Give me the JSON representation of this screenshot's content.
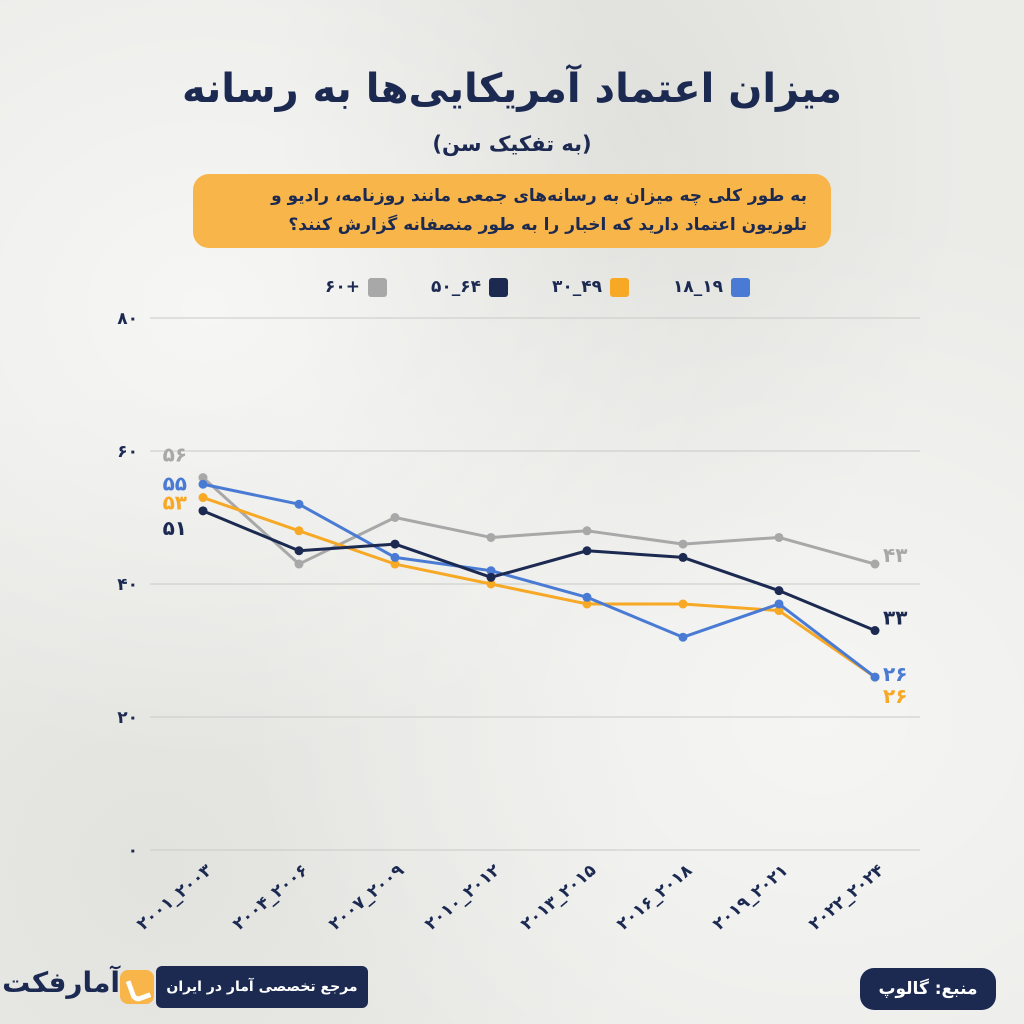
{
  "header": {
    "title": "میزان اعتماد آمریکایی‌ها به رسانه",
    "subtitle": "(به تفکیک سن)",
    "question": "به طور کلی چه میزان به رسانه‌های جمعی مانند روزنامه، رادیو و تلوزیون اعتماد دارید که اخبار را به طور منصفانه گزارش کنند؟"
  },
  "chart_data": {
    "type": "line",
    "categories": [
      "۲۰۰۱_۲۰۰۳",
      "۲۰۰۴_۲۰۰۶",
      "۲۰۰۷_۲۰۰۹",
      "۲۰۱۰_۲۰۱۲",
      "۲۰۱۳_۲۰۱۵",
      "۲۰۱۶_۲۰۱۸",
      "۲۰۱۹_۲۰۲۱",
      "۲۰۲۲_۲۰۲۴"
    ],
    "ylim": [
      0,
      80
    ],
    "yticks": [
      0,
      20,
      40,
      60,
      80
    ],
    "ytick_labels": [
      "۰",
      "۲۰",
      "۴۰",
      "۶۰",
      "۸۰"
    ],
    "grid": true,
    "legend_position": "top",
    "series": [
      {
        "name": "۱۸_۱۹",
        "color": "#4a7bd4",
        "values": [
          55,
          52,
          44,
          42,
          38,
          32,
          37,
          26
        ],
        "label_first": "۵۵",
        "label_last": "۲۶"
      },
      {
        "name": "۳۰_۴۹",
        "color": "#f7a825",
        "values": [
          53,
          48,
          43,
          40,
          37,
          37,
          36,
          26
        ],
        "label_first": "۵۳",
        "label_last": "۲۶"
      },
      {
        "name": "۵۰_۶۴",
        "color": "#1c2a52",
        "values": [
          51,
          45,
          46,
          41,
          45,
          44,
          39,
          33
        ],
        "label_first": "۵۱",
        "label_last": "۳۳"
      },
      {
        "name": "۶۰+",
        "color": "#a8a8a8",
        "values": [
          56,
          43,
          50,
          47,
          48,
          46,
          47,
          43
        ],
        "label_first": "۵۶",
        "label_last": "۴۳"
      }
    ]
  },
  "footer": {
    "source": "منبع: گالوپ",
    "reference": "مرجع تخصصی آمار در ایران",
    "logo_text": "آمارفکت",
    "logo_icon": "amarfact-logo-icon"
  }
}
